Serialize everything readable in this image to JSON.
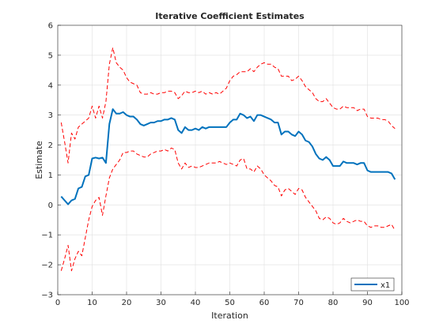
{
  "chart_data": {
    "type": "line",
    "title": "Iterative Coefficient Estimates",
    "xlabel": "Iteration",
    "ylabel": "Estimate",
    "xlim": [
      0,
      100
    ],
    "ylim": [
      -3,
      6
    ],
    "xticks": [
      0,
      10,
      20,
      30,
      40,
      50,
      60,
      70,
      80,
      90,
      100
    ],
    "yticks": [
      -3,
      -2,
      -1,
      0,
      1,
      2,
      3,
      4,
      5,
      6
    ],
    "grid": true,
    "legend_location": "bottom-right",
    "series": [
      {
        "name": "x1",
        "role": "estimate",
        "color": "#0072BD",
        "style": "solid",
        "x": [
          1,
          2,
          3,
          4,
          5,
          6,
          7,
          8,
          9,
          10,
          11,
          12,
          13,
          14,
          15,
          16,
          17,
          18,
          19,
          20,
          21,
          22,
          23,
          24,
          25,
          26,
          27,
          28,
          29,
          30,
          31,
          32,
          33,
          34,
          35,
          36,
          37,
          38,
          39,
          40,
          41,
          42,
          43,
          44,
          45,
          46,
          47,
          48,
          49,
          50,
          51,
          52,
          53,
          54,
          55,
          56,
          57,
          58,
          59,
          60,
          61,
          62,
          63,
          64,
          65,
          66,
          67,
          68,
          69,
          70,
          71,
          72,
          73,
          74,
          75,
          76,
          77,
          78,
          79,
          80,
          81,
          82,
          83,
          84,
          85,
          86,
          87,
          88,
          89,
          90,
          91,
          92,
          93,
          94,
          95,
          96,
          97,
          98
        ],
        "y": [
          0.28,
          0.15,
          0.02,
          0.15,
          0.2,
          0.55,
          0.6,
          0.95,
          1.0,
          1.55,
          1.58,
          1.55,
          1.58,
          1.4,
          2.7,
          3.2,
          3.05,
          3.05,
          3.1,
          3.0,
          2.95,
          2.95,
          2.85,
          2.7,
          2.65,
          2.7,
          2.75,
          2.75,
          2.8,
          2.8,
          2.85,
          2.85,
          2.9,
          2.85,
          2.5,
          2.4,
          2.6,
          2.5,
          2.5,
          2.55,
          2.5,
          2.6,
          2.55,
          2.6,
          2.6,
          2.6,
          2.6,
          2.6,
          2.6,
          2.75,
          2.85,
          2.85,
          3.05,
          3.0,
          2.9,
          2.95,
          2.8,
          3.0,
          3.0,
          2.95,
          2.9,
          2.85,
          2.75,
          2.75,
          2.35,
          2.45,
          2.45,
          2.35,
          2.3,
          2.45,
          2.35,
          2.15,
          2.1,
          1.95,
          1.7,
          1.55,
          1.5,
          1.6,
          1.5,
          1.3,
          1.3,
          1.3,
          1.45,
          1.4,
          1.4,
          1.4,
          1.35,
          1.4,
          1.4,
          1.15,
          1.1,
          1.1,
          1.1,
          1.1,
          1.1,
          1.1,
          1.05,
          0.85
        ]
      },
      {
        "name": "",
        "role": "upper-bound",
        "color": "#FF0000",
        "style": "dashed",
        "x": [
          1,
          2,
          3,
          4,
          5,
          6,
          7,
          8,
          9,
          10,
          11,
          12,
          13,
          14,
          15,
          16,
          17,
          18,
          19,
          20,
          21,
          22,
          23,
          24,
          25,
          26,
          27,
          28,
          29,
          30,
          31,
          32,
          33,
          34,
          35,
          36,
          37,
          38,
          39,
          40,
          41,
          42,
          43,
          44,
          45,
          46,
          47,
          48,
          49,
          50,
          51,
          52,
          53,
          54,
          55,
          56,
          57,
          58,
          59,
          60,
          61,
          62,
          63,
          64,
          65,
          66,
          67,
          68,
          69,
          70,
          71,
          72,
          73,
          74,
          75,
          76,
          77,
          78,
          79,
          80,
          81,
          82,
          83,
          84,
          85,
          86,
          87,
          88,
          89,
          90,
          91,
          92,
          93,
          94,
          95,
          96,
          97,
          98
        ],
        "y": [
          2.75,
          2.1,
          1.4,
          2.4,
          2.2,
          2.6,
          2.7,
          2.8,
          2.9,
          3.3,
          2.9,
          3.3,
          2.9,
          3.45,
          4.7,
          5.25,
          4.75,
          4.6,
          4.5,
          4.25,
          4.1,
          4.05,
          4.0,
          3.75,
          3.7,
          3.7,
          3.75,
          3.7,
          3.7,
          3.75,
          3.75,
          3.8,
          3.8,
          3.75,
          3.55,
          3.65,
          3.8,
          3.75,
          3.75,
          3.8,
          3.75,
          3.8,
          3.7,
          3.75,
          3.7,
          3.75,
          3.7,
          3.8,
          3.9,
          4.15,
          4.3,
          4.35,
          4.45,
          4.45,
          4.45,
          4.55,
          4.45,
          4.6,
          4.7,
          4.75,
          4.7,
          4.7,
          4.6,
          4.55,
          4.3,
          4.3,
          4.3,
          4.15,
          4.2,
          4.3,
          4.15,
          3.95,
          3.85,
          3.75,
          3.55,
          3.45,
          3.45,
          3.55,
          3.4,
          3.25,
          3.2,
          3.2,
          3.3,
          3.25,
          3.25,
          3.25,
          3.15,
          3.2,
          3.2,
          2.95,
          2.9,
          2.9,
          2.9,
          2.85,
          2.85,
          2.8,
          2.65,
          2.55
        ]
      },
      {
        "name": "",
        "role": "lower-bound",
        "color": "#FF0000",
        "style": "dashed",
        "x": [
          1,
          2,
          3,
          4,
          5,
          6,
          7,
          8,
          9,
          10,
          11,
          12,
          13,
          14,
          15,
          16,
          17,
          18,
          19,
          20,
          21,
          22,
          23,
          24,
          25,
          26,
          27,
          28,
          29,
          30,
          31,
          32,
          33,
          34,
          35,
          36,
          37,
          38,
          39,
          40,
          41,
          42,
          43,
          44,
          45,
          46,
          47,
          48,
          49,
          50,
          51,
          52,
          53,
          54,
          55,
          56,
          57,
          58,
          59,
          60,
          61,
          62,
          63,
          64,
          65,
          66,
          67,
          68,
          69,
          70,
          71,
          72,
          73,
          74,
          75,
          76,
          77,
          78,
          79,
          80,
          81,
          82,
          83,
          84,
          85,
          86,
          87,
          88,
          89,
          90,
          91,
          92,
          93,
          94,
          95,
          96,
          97,
          98
        ],
        "y": [
          -2.2,
          -1.8,
          -1.35,
          -2.2,
          -1.8,
          -1.55,
          -1.7,
          -1.1,
          -0.5,
          -0.05,
          0.15,
          0.25,
          -0.35,
          0.3,
          0.9,
          1.2,
          1.35,
          1.5,
          1.75,
          1.75,
          1.8,
          1.8,
          1.7,
          1.65,
          1.6,
          1.6,
          1.7,
          1.75,
          1.8,
          1.8,
          1.85,
          1.8,
          1.9,
          1.85,
          1.4,
          1.2,
          1.4,
          1.25,
          1.3,
          1.25,
          1.25,
          1.3,
          1.35,
          1.4,
          1.4,
          1.4,
          1.45,
          1.4,
          1.35,
          1.4,
          1.35,
          1.3,
          1.5,
          1.55,
          1.2,
          1.2,
          1.1,
          1.3,
          1.2,
          1.0,
          0.9,
          0.8,
          0.65,
          0.6,
          0.3,
          0.5,
          0.55,
          0.45,
          0.35,
          0.55,
          0.5,
          0.25,
          0.1,
          -0.05,
          -0.2,
          -0.45,
          -0.5,
          -0.4,
          -0.45,
          -0.6,
          -0.65,
          -0.6,
          -0.45,
          -0.55,
          -0.6,
          -0.55,
          -0.5,
          -0.55,
          -0.55,
          -0.7,
          -0.75,
          -0.7,
          -0.7,
          -0.75,
          -0.75,
          -0.7,
          -0.65,
          -0.85
        ]
      }
    ]
  }
}
